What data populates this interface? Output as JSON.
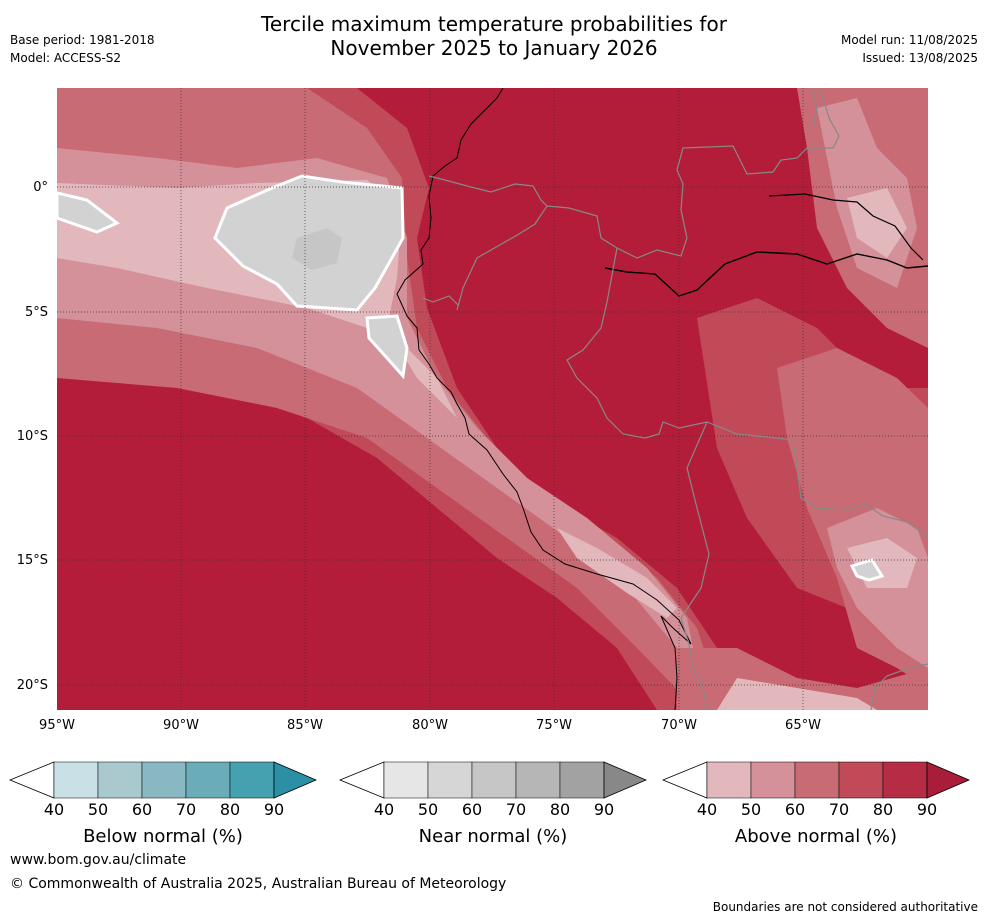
{
  "header": {
    "title_line1": "Tercile maximum temperature probabilities for",
    "title_line2": "November 2025 to January 2026",
    "base_period": "Base period: 1981-2018",
    "model": "Model: ACCESS-S2",
    "model_run": "Model run: 11/08/2025",
    "issued": "Issued: 13/08/2025"
  },
  "map": {
    "lat_labels": [
      "0°",
      "5°S",
      "10°S",
      "15°S",
      "20°S"
    ],
    "lon_labels": [
      "95°W",
      "90°W",
      "85°W",
      "80°W",
      "75°W",
      "70°W",
      "65°W"
    ],
    "colors": {
      "above_90": "#b31d3a",
      "above_80": "#c04a58",
      "above_70": "#c96b75",
      "above_60": "#d4919a",
      "above_50": "#e2b8bd",
      "near_60": "#d2d2d2",
      "near_70": "#c6c6c6"
    }
  },
  "colorbars": [
    {
      "label": "Below normal (%)",
      "ticks": [
        "40",
        "50",
        "60",
        "70",
        "80",
        "90"
      ],
      "colors": [
        "#c8e0e6",
        "#a9c9cf",
        "#89b8c3",
        "#6aadb8",
        "#45a0b0",
        "#2d8fa5"
      ]
    },
    {
      "label": "Near normal (%)",
      "ticks": [
        "40",
        "50",
        "60",
        "70",
        "80",
        "90"
      ],
      "colors": [
        "#e6e6e6",
        "#d6d6d6",
        "#c6c6c6",
        "#b6b6b6",
        "#a2a2a2",
        "#888888"
      ]
    },
    {
      "label": "Above normal (%)",
      "ticks": [
        "40",
        "50",
        "60",
        "70",
        "80",
        "90"
      ],
      "colors": [
        "#e2b8bd",
        "#d4919a",
        "#c96b75",
        "#c04a58",
        "#b52c44",
        "#a91c3a"
      ]
    }
  ],
  "footer": {
    "website": "www.bom.gov.au/climate",
    "copyright": "© Commonwealth of Australia 2025, Australian Bureau of Meteorology",
    "disclaimer": "Boundaries are not considered authoritative"
  }
}
